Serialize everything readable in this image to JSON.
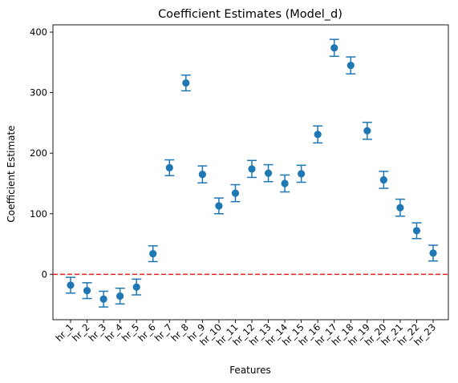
{
  "chart_data": {
    "type": "scatter",
    "title": "Coefficient Estimates (Model_d)",
    "xlabel": "Features",
    "ylabel": "Coefficient Estimate",
    "ylim": [
      -75,
      412
    ],
    "yticks": [
      0,
      100,
      200,
      300,
      400
    ],
    "reference_line": {
      "y": 0,
      "style": "dashed",
      "color": "#e8251e"
    },
    "marker_color": "#1f77b4",
    "categories": [
      "hr_1",
      "hr_2",
      "hr_3",
      "hr_4",
      "hr_5",
      "hr_6",
      "hr_7",
      "hr_8",
      "hr_9",
      "hr_10",
      "hr_11",
      "hr_12",
      "hr_13",
      "hr_14",
      "hr_15",
      "hr_16",
      "hr_17",
      "hr_18",
      "hr_19",
      "hr_20",
      "hr_21",
      "hr_22",
      "hr_23"
    ],
    "values": [
      -18,
      -27,
      -41,
      -36,
      -21,
      34,
      176,
      316,
      165,
      113,
      134,
      174,
      167,
      150,
      166,
      231,
      374,
      345,
      237,
      156,
      110,
      72,
      35
    ],
    "error": [
      13,
      13,
      13,
      13,
      13,
      13,
      13,
      13,
      14,
      13,
      14,
      14,
      14,
      14,
      14,
      14,
      14,
      14,
      14,
      14,
      14,
      13,
      13
    ]
  }
}
